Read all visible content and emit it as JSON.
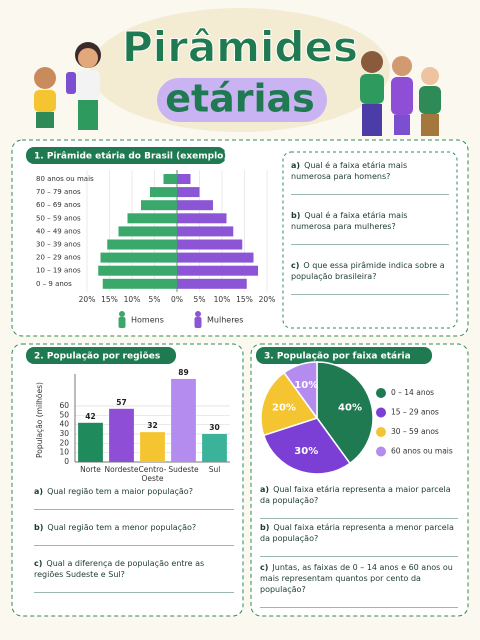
{
  "header": {
    "title_line1": "Pirâmides",
    "title_line2": "etárias"
  },
  "sections": [
    {
      "title": "1. Pirâmide etária do Brasil (exemplo)",
      "questions": [
        {
          "letter": "a)",
          "text": "Qual é a faixa etária mais numerosa para homens?"
        },
        {
          "letter": "b)",
          "text": "Qual é a faixa etária mais numerosa para mulheres?"
        },
        {
          "letter": "c)",
          "text": "O que essa pirâmide indica sobre a população brasileira?"
        }
      ]
    },
    {
      "title": "2. População por regiões",
      "questions": [
        {
          "letter": "a)",
          "text": "Qual região tem a maior população?"
        },
        {
          "letter": "b)",
          "text": "Qual região tem a menor população?"
        },
        {
          "letter": "c)",
          "text": "Qual a diferença de população entre as regiões Sudeste e Sul?"
        }
      ]
    },
    {
      "title": "3. População por faixa etária",
      "questions": [
        {
          "letter": "a)",
          "text": "Qual faixa etária representa a maior parcela da população?"
        },
        {
          "letter": "b)",
          "text": "Qual faixa etária representa a menor parcela da população?"
        },
        {
          "letter": "c)",
          "text": "Juntas, as faixas de 0 – 14 anos e 60 anos ou mais representam quantos por cento da população?"
        }
      ]
    }
  ],
  "chart_data": [
    {
      "type": "pyramid",
      "categories": [
        "80 anos ou mais",
        "70 – 79 anos",
        "60 – 69 anos",
        "50 – 59 anos",
        "40 – 49 anos",
        "30 – 39 anos",
        "20 – 29 anos",
        "10 – 19 anos",
        "0 – 9 anos"
      ],
      "series": [
        {
          "name": "Homens",
          "color": "#3aa86b",
          "values": [
            3,
            6,
            8,
            11,
            13,
            15.5,
            17,
            17.5,
            16.5
          ]
        },
        {
          "name": "Mulheres",
          "color": "#8b55d6",
          "values": [
            3,
            5,
            8,
            11,
            12.5,
            14.5,
            17,
            18,
            15.5
          ]
        }
      ],
      "xlim": [
        0,
        20
      ],
      "xticks": [
        {
          "value": 0,
          "label": "0%"
        },
        {
          "value": 5,
          "label": "5%"
        },
        {
          "value": 10,
          "label": "10%"
        },
        {
          "value": 15,
          "label": "15%"
        },
        {
          "value": 20,
          "label": "20%"
        }
      ],
      "grid": true
    },
    {
      "type": "bar",
      "categories": [
        "Norte",
        "Nordeste",
        "Centro-Oeste",
        "Sudeste",
        "Sul"
      ],
      "values": [
        42,
        57,
        32,
        89,
        30
      ],
      "colors": [
        "#1f8a5b",
        "#8e4fd6",
        "#f5c431",
        "#b48cf0",
        "#3bb39a"
      ],
      "ylabel": "População (milhões)",
      "ylim": [
        0,
        90
      ],
      "yticks": [
        0,
        10,
        20,
        30,
        40,
        50,
        60
      ],
      "grid": true
    },
    {
      "type": "pie",
      "categories": [
        "0 – 14 anos",
        "15 – 29 anos",
        "30 – 59 anos",
        "60 anos ou mais"
      ],
      "values": [
        40,
        30,
        20,
        10
      ],
      "value_labels": [
        "40%",
        "30%",
        "20%",
        "10%"
      ],
      "colors": [
        "#1f7a52",
        "#7b3fd6",
        "#f5c431",
        "#b48cf0"
      ]
    }
  ]
}
